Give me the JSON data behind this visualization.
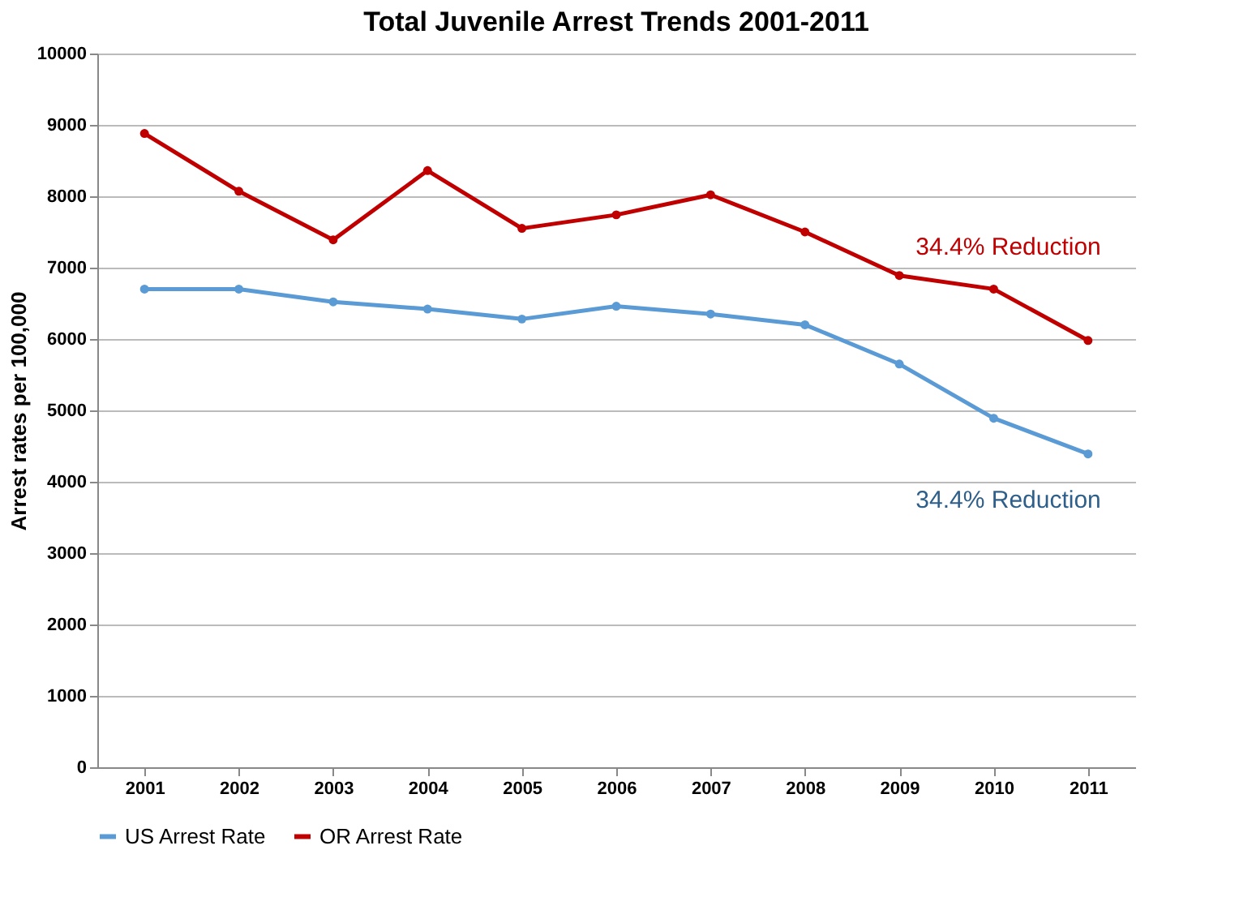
{
  "chart_data": {
    "type": "line",
    "title": "Total Juvenile Arrest Trends 2001-2011",
    "ylabel": "Arrest rates per 100,000",
    "categories": [
      "2001",
      "2002",
      "2003",
      "2004",
      "2005",
      "2006",
      "2007",
      "2008",
      "2009",
      "2010",
      "2011"
    ],
    "series": [
      {
        "name": "US Arrest Rate",
        "color": "#5b9bd5",
        "values": [
          6700,
          6700,
          6520,
          6420,
          6280,
          6460,
          6350,
          6200,
          5650,
          4890,
          4390
        ]
      },
      {
        "name": "OR Arrest Rate",
        "color": "#c00000",
        "values": [
          8880,
          8070,
          7390,
          8360,
          7550,
          7740,
          8020,
          7500,
          6890,
          6700,
          5980
        ]
      }
    ],
    "annotations": [
      "34.4% Reduction",
      "34.4% Reduction"
    ],
    "ylim": [
      0,
      10000
    ],
    "yticks": [
      0,
      1000,
      2000,
      3000,
      4000,
      5000,
      6000,
      7000,
      8000,
      9000,
      10000
    ],
    "grid": "y",
    "legend": "bottom",
    "marker": "circle",
    "line_style": "solid"
  }
}
